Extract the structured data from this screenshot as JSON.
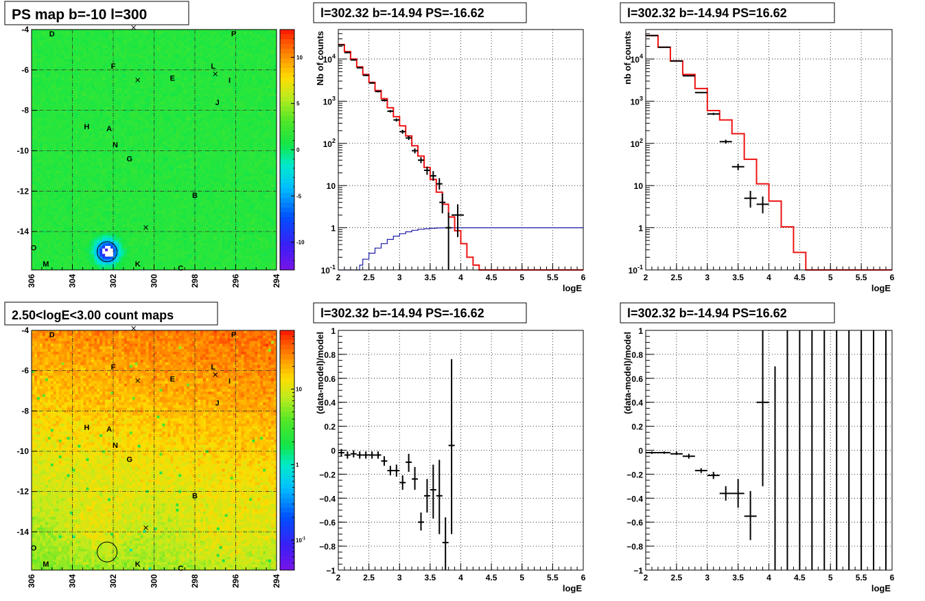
{
  "chart_data": [
    {
      "id": "ps_map",
      "type": "heatmap",
      "title": "PS map b=-10 l=300",
      "xlabel": "",
      "ylabel": "",
      "xlim": [
        306,
        294
      ],
      "ylim": [
        -15.9,
        -4
      ],
      "xticks": [
        306,
        304,
        302,
        300,
        298,
        296,
        294
      ],
      "yticks": [
        -4,
        -6,
        -8,
        -10,
        -12,
        -14
      ],
      "palette_ticks": [
        10,
        5,
        0,
        -5,
        -10
      ],
      "palette_range": [
        -13,
        13
      ],
      "hotspot": {
        "l": 302.4,
        "b": -15.0,
        "value": -16.6
      },
      "circle": {
        "l": 302.3,
        "b": -15.0,
        "r": 0.5
      },
      "markers": [
        {
          "l": 301.0,
          "b": -3.9
        },
        {
          "l": 300.8,
          "b": -6.5
        },
        {
          "l": 297.0,
          "b": -6.2
        },
        {
          "l": 300.4,
          "b": -13.8
        }
      ],
      "sources": [
        {
          "name": "D",
          "l": 305.0,
          "b": -4.2
        },
        {
          "name": "P",
          "l": 296.1,
          "b": -4.2
        },
        {
          "name": "F",
          "l": 302.0,
          "b": -5.8
        },
        {
          "name": "L",
          "l": 297.1,
          "b": -5.8
        },
        {
          "name": "E",
          "l": 299.1,
          "b": -6.4
        },
        {
          "name": "I",
          "l": 296.3,
          "b": -6.5
        },
        {
          "name": "J",
          "l": 296.9,
          "b": -7.6
        },
        {
          "name": "H",
          "l": 303.3,
          "b": -8.8
        },
        {
          "name": "A",
          "l": 302.2,
          "b": -8.9
        },
        {
          "name": "N",
          "l": 301.9,
          "b": -9.7
        },
        {
          "name": "G",
          "l": 301.2,
          "b": -10.4
        },
        {
          "name": "B",
          "l": 298.0,
          "b": -12.2
        },
        {
          "name": "O",
          "l": 305.9,
          "b": -14.8
        },
        {
          "name": "M",
          "l": 305.3,
          "b": -15.6
        },
        {
          "name": "K",
          "l": 300.8,
          "b": -15.6
        },
        {
          "name": "C",
          "l": 298.7,
          "b": -15.8
        }
      ]
    },
    {
      "id": "counts_ps_neg",
      "type": "line",
      "title": "l=302.32 b=-14.94 PS=-16.62",
      "xlabel": "logE",
      "ylabel": "Nb of counts",
      "xlim": [
        2,
        6
      ],
      "ylim": [
        0.1,
        50000
      ],
      "log_y": true,
      "grid": true,
      "xticks": [
        "2",
        "2.5",
        "3",
        "3.5",
        "4",
        "4.5",
        "5",
        "5.5",
        "6"
      ],
      "yticks": [
        {
          "v": 0.1,
          "label": "10",
          "sup": "-1"
        },
        {
          "v": 1,
          "label": "1",
          "sup": ""
        },
        {
          "v": 10,
          "label": "10",
          "sup": ""
        },
        {
          "v": 100,
          "label": "10",
          "sup": "2"
        },
        {
          "v": 1000,
          "label": "10",
          "sup": "3"
        },
        {
          "v": 10000,
          "label": "10",
          "sup": "4"
        }
      ],
      "model_edges": [
        2.0,
        2.1,
        2.2,
        2.3,
        2.4,
        2.5,
        2.6,
        2.7,
        2.8,
        2.9,
        3.0,
        3.1,
        3.2,
        3.3,
        3.4,
        3.5,
        3.6,
        3.7,
        3.8,
        3.9,
        4.0,
        4.1,
        4.2,
        4.3,
        4.4,
        4.5,
        6.0
      ],
      "model_values": [
        22000,
        15000,
        10000,
        6500,
        4300,
        2800,
        1800,
        1150,
        700,
        430,
        260,
        150,
        88,
        50,
        27,
        14,
        7,
        3.6,
        1.8,
        0.85,
        0.42,
        0.2,
        0.13,
        0.1,
        0.1,
        0.1
      ],
      "acceptance_x": [
        2.0,
        2.3,
        2.35,
        2.4,
        2.5,
        2.6,
        2.7,
        2.8,
        2.9,
        3.0,
        3.1,
        3.2,
        3.3,
        3.4,
        3.5,
        3.6,
        3.7,
        3.8,
        6.0
      ],
      "acceptance_y": [
        0.1,
        0.1,
        0.13,
        0.18,
        0.25,
        0.33,
        0.42,
        0.53,
        0.63,
        0.72,
        0.8,
        0.87,
        0.92,
        0.95,
        0.97,
        0.99,
        1.0,
        1.0,
        1.0
      ],
      "points": [
        {
          "x": 2.05,
          "y": 21500,
          "xerr": 0.05,
          "ylo": 21000,
          "yhi": 22000
        },
        {
          "x": 2.15,
          "y": 14200,
          "xerr": 0.05,
          "ylo": 13800,
          "yhi": 14600
        },
        {
          "x": 2.25,
          "y": 9500,
          "xerr": 0.05,
          "ylo": 9200,
          "yhi": 9800
        },
        {
          "x": 2.35,
          "y": 6200,
          "xerr": 0.05,
          "ylo": 6000,
          "yhi": 6400
        },
        {
          "x": 2.45,
          "y": 4100,
          "xerr": 0.05,
          "ylo": 3950,
          "yhi": 4250
        },
        {
          "x": 2.55,
          "y": 2700,
          "xerr": 0.05,
          "ylo": 2600,
          "yhi": 2800
        },
        {
          "x": 2.65,
          "y": 1700,
          "xerr": 0.05,
          "ylo": 1620,
          "yhi": 1780
        },
        {
          "x": 2.75,
          "y": 1050,
          "xerr": 0.05,
          "ylo": 990,
          "yhi": 1110
        },
        {
          "x": 2.85,
          "y": 580,
          "xerr": 0.05,
          "ylo": 540,
          "yhi": 620
        },
        {
          "x": 2.95,
          "y": 360,
          "xerr": 0.05,
          "ylo": 330,
          "yhi": 390
        },
        {
          "x": 3.05,
          "y": 190,
          "xerr": 0.05,
          "ylo": 170,
          "yhi": 210
        },
        {
          "x": 3.15,
          "y": 135,
          "xerr": 0.05,
          "ylo": 120,
          "yhi": 150
        },
        {
          "x": 3.25,
          "y": 67,
          "xerr": 0.05,
          "ylo": 58,
          "yhi": 76
        },
        {
          "x": 3.35,
          "y": 40,
          "xerr": 0.05,
          "ylo": 34,
          "yhi": 47
        },
        {
          "x": 3.45,
          "y": 23,
          "xerr": 0.05,
          "ylo": 18,
          "yhi": 28
        },
        {
          "x": 3.55,
          "y": 17,
          "xerr": 0.05,
          "ylo": 13,
          "yhi": 22
        },
        {
          "x": 3.65,
          "y": 11,
          "xerr": 0.05,
          "ylo": 8,
          "yhi": 15
        },
        {
          "x": 3.7,
          "y": 4,
          "xerr": 0.05,
          "ylo": 2.2,
          "yhi": 6.5
        },
        {
          "x": 3.8,
          "y": 1,
          "xerr": 0.05,
          "ylo": 0.1,
          "yhi": 2.3
        },
        {
          "x": 3.95,
          "y": 2,
          "xerr": 0.1,
          "ylo": 0.6,
          "yhi": 3.6
        }
      ]
    },
    {
      "id": "counts_ps_pos",
      "type": "line",
      "title": "l=302.32 b=-14.94 PS=16.62",
      "xlabel": "logE",
      "ylabel": "nb of counts",
      "xlim": [
        2,
        6
      ],
      "ylim": [
        0.1,
        50000
      ],
      "log_y": true,
      "grid": true,
      "xticks": [
        "2",
        "2.5",
        "3",
        "3.5",
        "4",
        "4.5",
        "5",
        "5.5",
        "6"
      ],
      "yticks": [
        {
          "v": 0.1,
          "label": "10",
          "sup": "-1"
        },
        {
          "v": 1,
          "label": "1",
          "sup": ""
        },
        {
          "v": 10,
          "label": "10",
          "sup": ""
        },
        {
          "v": 100,
          "label": "10",
          "sup": "2"
        },
        {
          "v": 1000,
          "label": "10",
          "sup": "3"
        },
        {
          "v": 10000,
          "label": "10",
          "sup": "4"
        }
      ],
      "model_edges": [
        2.0,
        2.2,
        2.4,
        2.6,
        2.8,
        3.0,
        3.2,
        3.4,
        3.6,
        3.8,
        4.0,
        4.2,
        4.4,
        4.6,
        6.0
      ],
      "model_values": [
        36000,
        19000,
        9000,
        4300,
        2000,
        600,
        360,
        170,
        42,
        11,
        4.3,
        1.05,
        0.26,
        0.1
      ],
      "acceptance_x": [],
      "acceptance_y": [],
      "points": [
        {
          "x": 2.1,
          "y": 36000,
          "xerr": 0.1,
          "ylo": 35500,
          "yhi": 36500
        },
        {
          "x": 2.3,
          "y": 19000,
          "xerr": 0.1,
          "ylo": 18700,
          "yhi": 19300
        },
        {
          "x": 2.5,
          "y": 9000,
          "xerr": 0.1,
          "ylo": 8800,
          "yhi": 9200
        },
        {
          "x": 2.7,
          "y": 4000,
          "xerr": 0.1,
          "ylo": 3900,
          "yhi": 4100
        },
        {
          "x": 2.9,
          "y": 1600,
          "xerr": 0.1,
          "ylo": 1550,
          "yhi": 1650
        },
        {
          "x": 3.1,
          "y": 500,
          "xerr": 0.1,
          "ylo": 470,
          "yhi": 530
        },
        {
          "x": 3.3,
          "y": 110,
          "xerr": 0.1,
          "ylo": 98,
          "yhi": 122
        },
        {
          "x": 3.5,
          "y": 28,
          "xerr": 0.1,
          "ylo": 23,
          "yhi": 33
        },
        {
          "x": 3.7,
          "y": 5,
          "xerr": 0.1,
          "ylo": 3,
          "yhi": 7.5
        },
        {
          "x": 3.9,
          "y": 3.6,
          "xerr": 0.1,
          "ylo": 2.2,
          "yhi": 5.5
        }
      ]
    },
    {
      "id": "count_map",
      "type": "heatmap",
      "title": "2.50<logE<3.00 count maps",
      "xlabel": "",
      "ylabel": "",
      "xlim": [
        306,
        294
      ],
      "ylim": [
        -15.9,
        -4
      ],
      "xticks": [
        306,
        304,
        302,
        300,
        298,
        296,
        294
      ],
      "yticks": [
        -4,
        -6,
        -8,
        -10,
        -12,
        -14
      ],
      "palette_ticks": [
        {
          "v": 10,
          "label": "10",
          "sup": ""
        },
        {
          "v": 1,
          "label": "1",
          "sup": ""
        },
        {
          "v": 0.1,
          "label": "10",
          "sup": "-1"
        }
      ],
      "palette_range": [
        0.04,
        60
      ],
      "circle": {
        "l": 302.3,
        "b": -15.0,
        "r": 0.5
      },
      "markers": [
        {
          "l": 301.0,
          "b": -3.9
        },
        {
          "l": 300.8,
          "b": -6.5
        },
        {
          "l": 297.0,
          "b": -6.2
        },
        {
          "l": 300.4,
          "b": -13.8
        }
      ],
      "sources": [
        {
          "name": "D",
          "l": 305.0,
          "b": -4.2
        },
        {
          "name": "P",
          "l": 296.1,
          "b": -4.2
        },
        {
          "name": "F",
          "l": 302.0,
          "b": -5.8
        },
        {
          "name": "L",
          "l": 297.1,
          "b": -5.8
        },
        {
          "name": "E",
          "l": 299.1,
          "b": -6.4
        },
        {
          "name": "I",
          "l": 296.3,
          "b": -6.5
        },
        {
          "name": "J",
          "l": 296.9,
          "b": -7.6
        },
        {
          "name": "H",
          "l": 303.3,
          "b": -8.8
        },
        {
          "name": "A",
          "l": 302.2,
          "b": -8.9
        },
        {
          "name": "N",
          "l": 301.9,
          "b": -9.7
        },
        {
          "name": "G",
          "l": 301.2,
          "b": -10.4
        },
        {
          "name": "B",
          "l": 298.0,
          "b": -12.2
        },
        {
          "name": "O",
          "l": 305.9,
          "b": -14.8
        },
        {
          "name": "M",
          "l": 305.3,
          "b": -15.6
        },
        {
          "name": "K",
          "l": 300.8,
          "b": -15.6
        },
        {
          "name": "C",
          "l": 298.7,
          "b": -15.8
        }
      ]
    },
    {
      "id": "resid_ps_neg",
      "type": "scatter",
      "title": "l=302.32 b=-14.94 PS=-16.62",
      "xlabel": "logE",
      "ylabel": "(data-model)/model",
      "xlim": [
        2,
        6
      ],
      "ylim": [
        -1,
        1
      ],
      "grid": true,
      "xticks": [
        "2",
        "2.5",
        "3",
        "3.5",
        "4",
        "4.5",
        "5",
        "5.5",
        "6"
      ],
      "yticks": [
        "-1",
        "-0.8",
        "-0.6",
        "-0.4",
        "-0.2",
        "0",
        "0.2",
        "0.4",
        "0.6",
        "0.8",
        "1"
      ],
      "points": [
        {
          "x": 2.05,
          "y": -0.02,
          "xerr": 0.05,
          "ylo": -0.05,
          "yhi": 0.01
        },
        {
          "x": 2.15,
          "y": -0.04,
          "xerr": 0.05,
          "ylo": -0.07,
          "yhi": -0.01
        },
        {
          "x": 2.25,
          "y": -0.03,
          "xerr": 0.05,
          "ylo": -0.06,
          "yhi": 0.0
        },
        {
          "x": 2.35,
          "y": -0.04,
          "xerr": 0.05,
          "ylo": -0.07,
          "yhi": -0.01
        },
        {
          "x": 2.45,
          "y": -0.04,
          "xerr": 0.05,
          "ylo": -0.07,
          "yhi": -0.01
        },
        {
          "x": 2.55,
          "y": -0.04,
          "xerr": 0.05,
          "ylo": -0.07,
          "yhi": -0.01
        },
        {
          "x": 2.65,
          "y": -0.04,
          "xerr": 0.05,
          "ylo": -0.07,
          "yhi": -0.01
        },
        {
          "x": 2.75,
          "y": -0.09,
          "xerr": 0.05,
          "ylo": -0.13,
          "yhi": -0.05
        },
        {
          "x": 2.85,
          "y": -0.17,
          "xerr": 0.05,
          "ylo": -0.21,
          "yhi": -0.13
        },
        {
          "x": 2.95,
          "y": -0.17,
          "xerr": 0.05,
          "ylo": -0.22,
          "yhi": -0.12
        },
        {
          "x": 3.05,
          "y": -0.27,
          "xerr": 0.05,
          "ylo": -0.33,
          "yhi": -0.21
        },
        {
          "x": 3.15,
          "y": -0.1,
          "xerr": 0.05,
          "ylo": -0.18,
          "yhi": -0.03
        },
        {
          "x": 3.25,
          "y": -0.24,
          "xerr": 0.05,
          "ylo": -0.33,
          "yhi": -0.14
        },
        {
          "x": 3.35,
          "y": -0.6,
          "xerr": 0.05,
          "ylo": -0.67,
          "yhi": -0.52
        },
        {
          "x": 3.45,
          "y": -0.38,
          "xerr": 0.05,
          "ylo": -0.52,
          "yhi": -0.24
        },
        {
          "x": 3.55,
          "y": -0.33,
          "xerr": 0.05,
          "ylo": -0.57,
          "yhi": -0.12
        },
        {
          "x": 3.65,
          "y": -0.38,
          "xerr": 0.05,
          "ylo": -0.7,
          "yhi": -0.08
        },
        {
          "x": 3.75,
          "y": -0.77,
          "xerr": 0.05,
          "ylo": -1.0,
          "yhi": -0.56
        },
        {
          "x": 3.85,
          "y": 0.04,
          "xerr": 0.05,
          "ylo": -0.7,
          "yhi": 0.76
        }
      ]
    },
    {
      "id": "resid_ps_pos",
      "type": "scatter",
      "title": "l=302.32 b=-14.94 PS=16.62",
      "xlabel": "logE",
      "ylabel": "(data-model)/model",
      "xlim": [
        2,
        6
      ],
      "ylim": [
        -1,
        1
      ],
      "grid": true,
      "xticks": [
        "2",
        "2.5",
        "3",
        "3.5",
        "4",
        "4.5",
        "5",
        "5.5",
        "6"
      ],
      "yticks": [
        "-1",
        "-0.8",
        "-0.6",
        "-0.4",
        "-0.2",
        "0",
        "0.2",
        "0.4",
        "0.6",
        "0.8",
        "1"
      ],
      "points": [
        {
          "x": 2.1,
          "y": -0.02,
          "xerr": 0.1,
          "ylo": -0.03,
          "yhi": -0.01
        },
        {
          "x": 2.3,
          "y": -0.02,
          "xerr": 0.1,
          "ylo": -0.03,
          "yhi": -0.01
        },
        {
          "x": 2.5,
          "y": -0.03,
          "xerr": 0.1,
          "ylo": -0.04,
          "yhi": -0.01
        },
        {
          "x": 2.7,
          "y": -0.05,
          "xerr": 0.1,
          "ylo": -0.07,
          "yhi": -0.03
        },
        {
          "x": 2.9,
          "y": -0.17,
          "xerr": 0.1,
          "ylo": -0.19,
          "yhi": -0.15
        },
        {
          "x": 3.1,
          "y": -0.21,
          "xerr": 0.1,
          "ylo": -0.24,
          "yhi": -0.18
        },
        {
          "x": 3.3,
          "y": -0.36,
          "xerr": 0.1,
          "ylo": -0.42,
          "yhi": -0.3
        },
        {
          "x": 3.5,
          "y": -0.36,
          "xerr": 0.1,
          "ylo": -0.48,
          "yhi": -0.24
        },
        {
          "x": 3.7,
          "y": -0.55,
          "xerr": 0.1,
          "ylo": -0.75,
          "yhi": -0.34
        },
        {
          "x": 3.9,
          "y": 0.4,
          "xerr": 0.1,
          "ylo": -0.3,
          "yhi": 1.0
        },
        {
          "x": 4.1,
          "y": 0,
          "xerr": 0,
          "ylo": -1.0,
          "yhi": 0.7
        },
        {
          "x": 4.3,
          "y": 0,
          "xerr": 0,
          "ylo": -1.0,
          "yhi": 1.0
        },
        {
          "x": 4.5,
          "y": 0,
          "xerr": 0,
          "ylo": -1.0,
          "yhi": 1.0
        },
        {
          "x": 4.7,
          "y": 0,
          "xerr": 0,
          "ylo": -1.0,
          "yhi": 1.0
        },
        {
          "x": 4.9,
          "y": 0,
          "xerr": 0,
          "ylo": -1.0,
          "yhi": 1.0
        },
        {
          "x": 5.1,
          "y": 0,
          "xerr": 0,
          "ylo": -1.0,
          "yhi": 1.0
        },
        {
          "x": 5.3,
          "y": 0,
          "xerr": 0,
          "ylo": -1.0,
          "yhi": 1.0
        },
        {
          "x": 5.5,
          "y": 0,
          "xerr": 0,
          "ylo": -1.0,
          "yhi": 1.0
        },
        {
          "x": 5.7,
          "y": 0,
          "xerr": 0,
          "ylo": -1.0,
          "yhi": 1.0
        },
        {
          "x": 5.9,
          "y": 0,
          "xerr": 0,
          "ylo": -1.0,
          "yhi": 1.0
        }
      ]
    }
  ]
}
